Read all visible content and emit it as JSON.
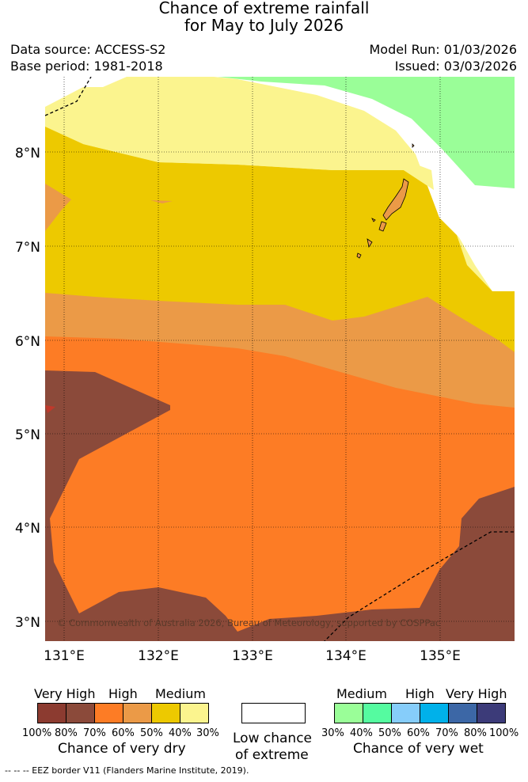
{
  "title": {
    "line1": "Chance of extreme rainfall",
    "line2": "for May to July 2026"
  },
  "meta": {
    "data_source": "Data source: ACCESS-S2",
    "base_period": "Base period: 1981-2018",
    "model_run": "Model Run: 01/03/2026",
    "issued": "Issued: 03/03/2026"
  },
  "map": {
    "lat_labels": [
      "8°N",
      "7°N",
      "6°N",
      "5°N",
      "4°N",
      "3°N"
    ],
    "lon_labels": [
      "131°E",
      "132°E",
      "133°E",
      "134°E",
      "135°E"
    ],
    "copyright": "© Commonwealth of Australia 2026, Bureau of Meteorology, supported by COSPPac",
    "colors": {
      "c80": "#8b4a3a",
      "c70": "#8b4a3a",
      "c60": "#fd7c25",
      "c50": "#eb9a47",
      "c40": "#edc900",
      "c30": "#fbf48e",
      "w30": "#9afe98",
      "w40": "#55fba0"
    }
  },
  "legend_dry": {
    "levels": [
      "Very High",
      "High",
      "Medium"
    ],
    "scale": [
      "100%",
      "80%",
      "70%",
      "60%",
      "50%",
      "40%",
      "30%"
    ],
    "caption": "Chance of very dry",
    "colors": [
      "#8c3b30",
      "#8b4a3a",
      "#fd7c25",
      "#eb9a47",
      "#edc900",
      "#fbf48e"
    ]
  },
  "legend_low": {
    "line1": "Low chance",
    "line2": "of extreme"
  },
  "legend_wet": {
    "levels": [
      "Medium",
      "High",
      "Very High"
    ],
    "scale": [
      "30%",
      "40%",
      "50%",
      "60%",
      "70%",
      "80%",
      "100%"
    ],
    "caption": "Chance of very wet",
    "colors": [
      "#9afe98",
      "#55fba0",
      "#86cdfa",
      "#00b1ea",
      "#3c67a6",
      "#3c3b79"
    ]
  },
  "footer": "--  --  -- EEZ border V11 (Flanders Marine Institute, 2019)."
}
